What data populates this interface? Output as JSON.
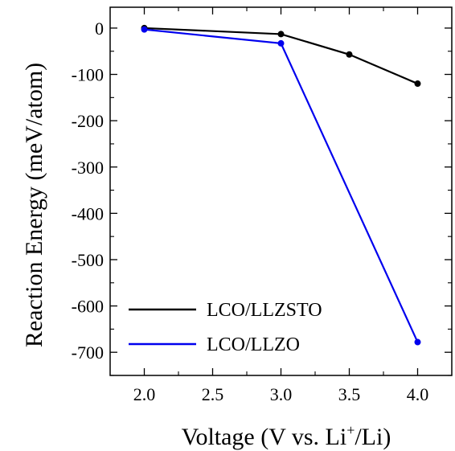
{
  "chart_data": {
    "type": "line",
    "xlabel_parts": {
      "pre": "Voltage (V vs. Li",
      "sup": "+",
      "post": "/Li)"
    },
    "ylabel": "Reaction Energy (meV/atom)",
    "xlim": [
      1.75,
      4.25
    ],
    "ylim": [
      -750,
      45
    ],
    "xticks": [
      2.0,
      2.5,
      3.0,
      3.5,
      4.0
    ],
    "xtick_labels": [
      "2.0",
      "2.5",
      "3.0",
      "3.5",
      "4.0"
    ],
    "yticks": [
      0,
      -100,
      -200,
      -300,
      -400,
      -500,
      -600,
      -700
    ],
    "ytick_labels": [
      "0",
      "-100",
      "-200",
      "-300",
      "-400",
      "-500",
      "-600",
      "-700"
    ],
    "grid": false,
    "legend_position": "bottom-left",
    "series": [
      {
        "name": "LCO/LLZSTO",
        "color": "#000000",
        "x": [
          2.0,
          3.0,
          3.5,
          4.0
        ],
        "y": [
          0,
          -13,
          -57,
          -120
        ]
      },
      {
        "name": "LCO/LLZO",
        "color": "#0000ee",
        "x": [
          2.0,
          3.0,
          4.0
        ],
        "y": [
          -3,
          -33,
          -678
        ]
      }
    ]
  }
}
